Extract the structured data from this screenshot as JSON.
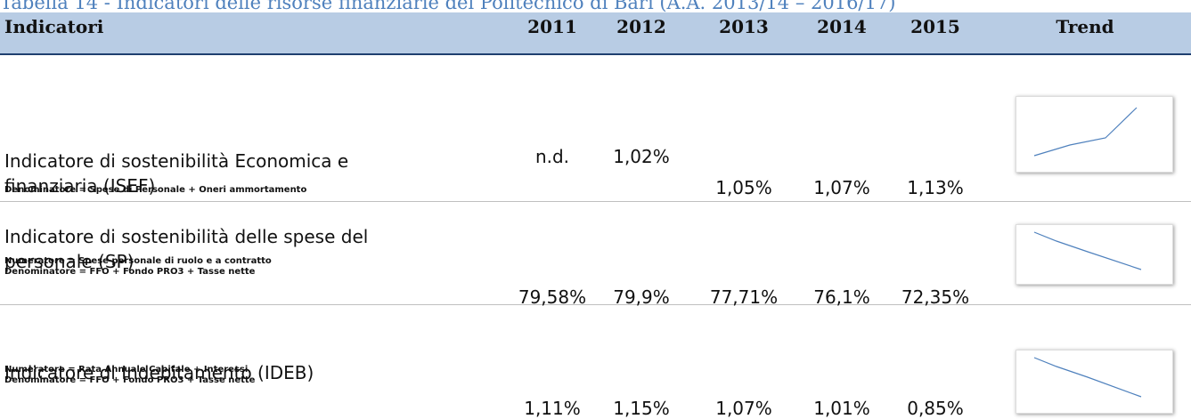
{
  "title": "Tabella 14 - Indicatori delle risorse finanziarie del Politecnico di Bari (A.A. 2013/14 – 2016/17)",
  "table": {
    "headers": [
      "Indicatori",
      "2011",
      "2012",
      "2013",
      "2014",
      "2015",
      "Trend"
    ],
    "rows": [
      {
        "name": "Indicatore di sostenibilità Economica e finanziaria (ISEF)",
        "notes": [
          "Denominatore = Spese di Personale + Oneri ammortamento"
        ],
        "values": [
          "n.d.",
          "1,02%",
          "1,05%",
          "1,07%",
          "1,13%"
        ]
      },
      {
        "name": "Indicatore di sostenibilità delle spese del personale (SP)",
        "notes": [
          "Numeratore = Spese personale di ruolo e a contratto",
          "Denominatore = FFO + Fondo PRO3 + Tasse nette"
        ],
        "values": [
          "79,58%",
          "79,9%",
          "77,71%",
          "76,1%",
          "72,35%"
        ]
      },
      {
        "name": "Indicatore di Indebitamento (IDEB)",
        "notes": [
          "Numeratore = Rata Annuale Capitale + Interessi",
          "Denominatore = FFO + Fondo PRO3 + Tasse nette"
        ],
        "values": [
          "1,11%",
          "1,15%",
          "1,07%",
          "1,01%",
          "0,85%"
        ]
      }
    ]
  }
}
